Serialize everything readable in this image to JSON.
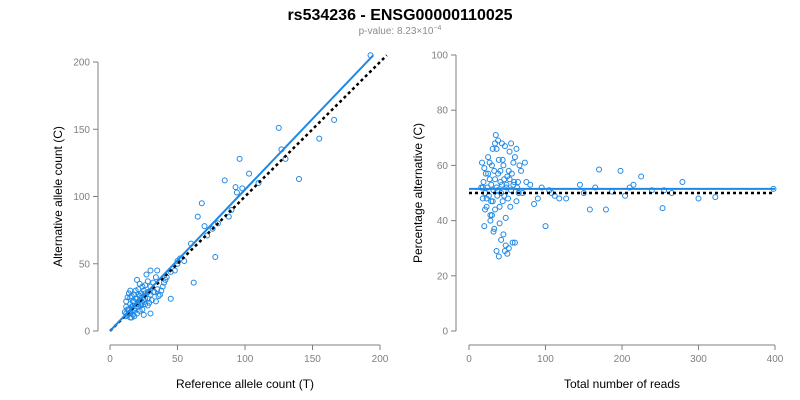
{
  "title": "rs534236 - ENSG00000110025",
  "subtitle": {
    "prefix": "p-value: 8.23×10",
    "exponent": "−4"
  },
  "colors": {
    "points": "#1e88e5",
    "fit_line": "#1e88e5",
    "reference_line": "#000000",
    "axis": "#7f7f7f"
  },
  "chart_data": [
    {
      "type": "scatter",
      "xlabel": "Reference allele count (T)",
      "ylabel": "Alternative allele count (C)",
      "xlim": [
        0,
        200
      ],
      "ylim": [
        0,
        200
      ],
      "xticks": [
        0,
        50,
        100,
        150,
        200
      ],
      "yticks": [
        0,
        50,
        100,
        150,
        200
      ],
      "grid": false,
      "fit_line": {
        "x": [
          0,
          195
        ],
        "y": [
          0,
          205
        ]
      },
      "reference_line": {
        "style": "dotted",
        "x": [
          0,
          205
        ],
        "y": [
          0,
          205
        ]
      },
      "points": [
        [
          193,
          205
        ],
        [
          166,
          157
        ],
        [
          155,
          143
        ],
        [
          140,
          113
        ],
        [
          130,
          128
        ],
        [
          127,
          135
        ],
        [
          125,
          151
        ],
        [
          110,
          110
        ],
        [
          103,
          117
        ],
        [
          98,
          106
        ],
        [
          96,
          128
        ],
        [
          94,
          103
        ],
        [
          93,
          107
        ],
        [
          90,
          90
        ],
        [
          88,
          85
        ],
        [
          85,
          112
        ],
        [
          80,
          80
        ],
        [
          76,
          76
        ],
        [
          72,
          71
        ],
        [
          70,
          78
        ],
        [
          68,
          95
        ],
        [
          65,
          85
        ],
        [
          60,
          65
        ],
        [
          55,
          52
        ],
        [
          52,
          54
        ],
        [
          50,
          52
        ],
        [
          45,
          44
        ],
        [
          42,
          40
        ],
        [
          40,
          36
        ],
        [
          35,
          31
        ],
        [
          33,
          29
        ],
        [
          30,
          27
        ],
        [
          28,
          24
        ],
        [
          26,
          28
        ],
        [
          25,
          12
        ],
        [
          24,
          33
        ],
        [
          23,
          20
        ],
        [
          22,
          26
        ],
        [
          21,
          31
        ],
        [
          20,
          38
        ],
        [
          19,
          17
        ],
        [
          18,
          22
        ],
        [
          17,
          12
        ],
        [
          16,
          15
        ],
        [
          16,
          26
        ],
        [
          15,
          10
        ],
        [
          15,
          20
        ],
        [
          14,
          13
        ],
        [
          13,
          16
        ],
        [
          12,
          11
        ],
        [
          12,
          18
        ],
        [
          11,
          14
        ],
        [
          12,
          22
        ],
        [
          13,
          25
        ],
        [
          14,
          28
        ],
        [
          15,
          30
        ],
        [
          17,
          19
        ],
        [
          18,
          27
        ],
        [
          19,
          30
        ],
        [
          20,
          24
        ],
        [
          21,
          18
        ],
        [
          22,
          35
        ],
        [
          23,
          28
        ],
        [
          24,
          16
        ],
        [
          25,
          23
        ],
        [
          26,
          20
        ],
        [
          27,
          42
        ],
        [
          28,
          19
        ],
        [
          29,
          21
        ],
        [
          30,
          13
        ],
        [
          31,
          23
        ],
        [
          32,
          29
        ],
        [
          34,
          22
        ],
        [
          36,
          26
        ],
        [
          38,
          30
        ],
        [
          12,
          13
        ],
        [
          13,
          12
        ],
        [
          14,
          16
        ],
        [
          15,
          14
        ],
        [
          16,
          18
        ],
        [
          17,
          22
        ],
        [
          18,
          15
        ],
        [
          19,
          24
        ],
        [
          20,
          20
        ],
        [
          21,
          27
        ],
        [
          22,
          15
        ],
        [
          23,
          19
        ],
        [
          24,
          25
        ],
        [
          25,
          30
        ],
        [
          26,
          34
        ],
        [
          28,
          37
        ],
        [
          30,
          45
        ],
        [
          15,
          25
        ],
        [
          16,
          10
        ],
        [
          18,
          11
        ],
        [
          20,
          13
        ],
        [
          22,
          23
        ],
        [
          24,
          21
        ],
        [
          26,
          24
        ],
        [
          28,
          29
        ],
        [
          30,
          33
        ],
        [
          32,
          36
        ],
        [
          34,
          40
        ],
        [
          35,
          45
        ],
        [
          37,
          27
        ],
        [
          39,
          33
        ],
        [
          41,
          38
        ],
        [
          45,
          24
        ],
        [
          48,
          45
        ],
        [
          50,
          50
        ],
        [
          62,
          36
        ],
        [
          78,
          55
        ]
      ]
    },
    {
      "type": "scatter",
      "xlabel": "Total number of reads",
      "ylabel": "Percentage alternative (C)",
      "xlim": [
        0,
        400
      ],
      "ylim": [
        0,
        100
      ],
      "xticks": [
        0,
        100,
        200,
        300,
        400
      ],
      "yticks": [
        0,
        20,
        40,
        60,
        80,
        100
      ],
      "grid": false,
      "fit_line": {
        "x": [
          0,
          400
        ],
        "y": [
          51.5,
          51.5
        ]
      },
      "reference_line": {
        "style": "dotted",
        "x": [
          0,
          400
        ],
        "y": [
          50,
          50
        ]
      },
      "points": [
        [
          398,
          51.5
        ],
        [
          322,
          48.5
        ],
        [
          300,
          48
        ],
        [
          279,
          54
        ],
        [
          265,
          50
        ],
        [
          255,
          51
        ],
        [
          253,
          44.5
        ],
        [
          239,
          51
        ],
        [
          225,
          56
        ],
        [
          215,
          53
        ],
        [
          210,
          52
        ],
        [
          204,
          49
        ],
        [
          198,
          58
        ],
        [
          187,
          50.5
        ],
        [
          179,
          44
        ],
        [
          170,
          58.5
        ],
        [
          165,
          52
        ],
        [
          158,
          44
        ],
        [
          150,
          50
        ],
        [
          145,
          53
        ],
        [
          127,
          48
        ],
        [
          118,
          48
        ],
        [
          112,
          49
        ],
        [
          108,
          50
        ],
        [
          105,
          51
        ],
        [
          100,
          38
        ],
        [
          95,
          52
        ],
        [
          90,
          48
        ],
        [
          85,
          46
        ],
        [
          80,
          53
        ],
        [
          75,
          54
        ],
        [
          73,
          61
        ],
        [
          70,
          50
        ],
        [
          68,
          58
        ],
        [
          66,
          60
        ],
        [
          64,
          54
        ],
        [
          62,
          66
        ],
        [
          60,
          63
        ],
        [
          58,
          53
        ],
        [
          57,
          32
        ],
        [
          55,
          51
        ],
        [
          54,
          45
        ],
        [
          53,
          65
        ],
        [
          52,
          58
        ],
        [
          51,
          48
        ],
        [
          50,
          56
        ],
        [
          49,
          53
        ],
        [
          48,
          41
        ],
        [
          47,
          29
        ],
        [
          46,
          55
        ],
        [
          45,
          60
        ],
        [
          44,
          47
        ],
        [
          43,
          68
        ],
        [
          42,
          50
        ],
        [
          41,
          54
        ],
        [
          40,
          39
        ],
        [
          39,
          62
        ],
        [
          38,
          57
        ],
        [
          37,
          49
        ],
        [
          36,
          52
        ],
        [
          35,
          71
        ],
        [
          34,
          44
        ],
        [
          33,
          58
        ],
        [
          32,
          51
        ],
        [
          31,
          47
        ],
        [
          30,
          60
        ],
        [
          29,
          53
        ],
        [
          28,
          42
        ],
        [
          27,
          55
        ],
        [
          26,
          49
        ],
        [
          25,
          63
        ],
        [
          24,
          52
        ],
        [
          23,
          45
        ],
        [
          22,
          57
        ],
        [
          21,
          50
        ],
        [
          20,
          38
        ],
        [
          19,
          54
        ],
        [
          18,
          48
        ],
        [
          17,
          61
        ],
        [
          16,
          52
        ],
        [
          48,
          31
        ],
        [
          52,
          30
        ],
        [
          45,
          35
        ],
        [
          39,
          27
        ],
        [
          36,
          29
        ],
        [
          42,
          33
        ],
        [
          60,
          32
        ],
        [
          50,
          28
        ],
        [
          28,
          40
        ],
        [
          33,
          37
        ],
        [
          40,
          45
        ],
        [
          44,
          62
        ],
        [
          47,
          67
        ],
        [
          38,
          69
        ],
        [
          36,
          66
        ],
        [
          34,
          68
        ],
        [
          55,
          68
        ],
        [
          58,
          61
        ],
        [
          62,
          47
        ],
        [
          65,
          50
        ],
        [
          27,
          61
        ],
        [
          25,
          57
        ],
        [
          23,
          48
        ],
        [
          21,
          44
        ],
        [
          20,
          59
        ],
        [
          18,
          52
        ],
        [
          30,
          42
        ],
        [
          32,
          36
        ],
        [
          31,
          66
        ],
        [
          29,
          47
        ],
        [
          34,
          55
        ],
        [
          37,
          51
        ],
        [
          41,
          58
        ],
        [
          43,
          53
        ],
        [
          46,
          49
        ],
        [
          49,
          52
        ],
        [
          53,
          55
        ],
        [
          56,
          57
        ],
        [
          59,
          54
        ],
        [
          63,
          52
        ]
      ]
    }
  ]
}
